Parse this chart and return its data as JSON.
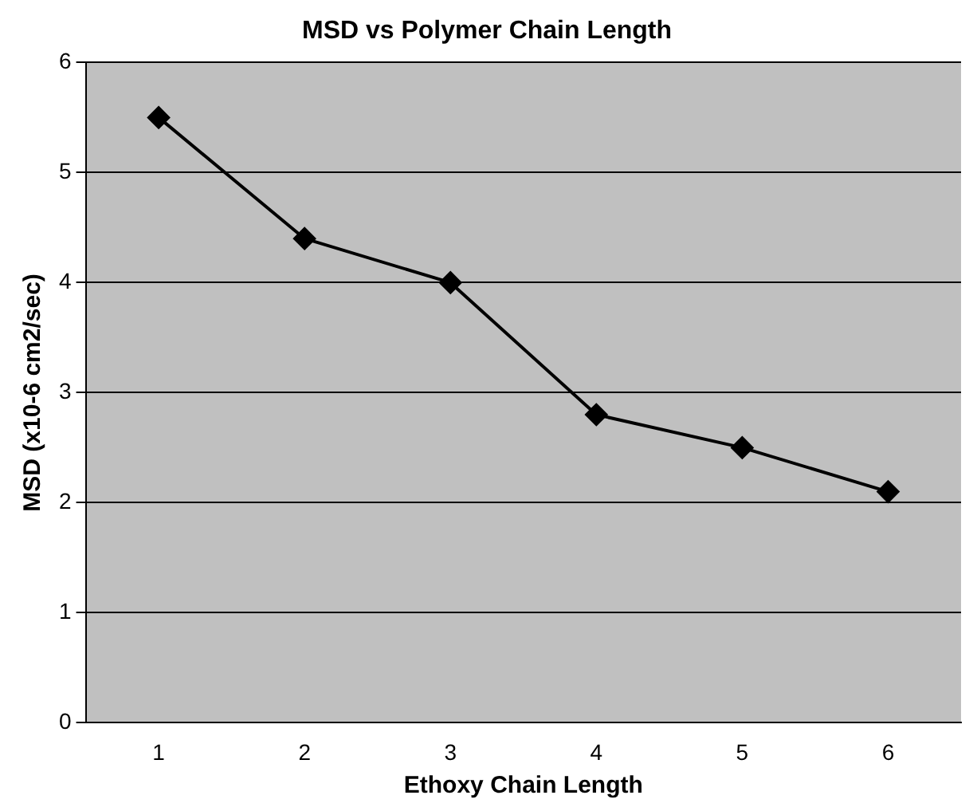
{
  "chart_data": {
    "type": "line",
    "title": "MSD vs Polymer Chain Length",
    "xlabel": "Ethoxy Chain Length",
    "ylabel": "MSD (x10-6 cm2/sec)",
    "categories": [
      "1",
      "2",
      "3",
      "4",
      "5",
      "6"
    ],
    "series": [
      {
        "color": "#000000",
        "values": [
          5.5,
          4.4,
          4.0,
          2.8,
          2.5,
          2.1
        ]
      }
    ],
    "ylim": [
      0,
      6
    ],
    "yticks": [
      0,
      1,
      2,
      3,
      4,
      5,
      6
    ],
    "grid": "y",
    "legend": false,
    "marker": "diamond",
    "line_style": "solid"
  }
}
